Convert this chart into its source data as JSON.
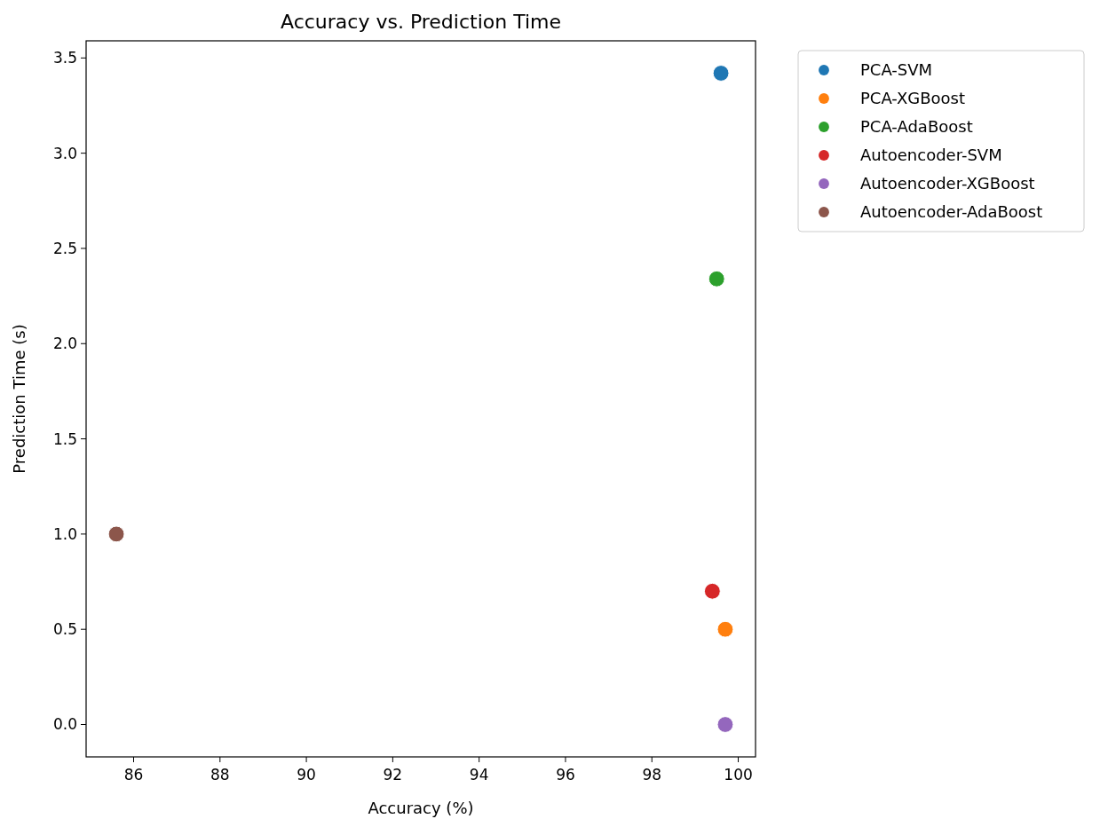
{
  "chart_data": {
    "type": "scatter",
    "title": "Accuracy vs. Prediction Time",
    "xlabel": "Accuracy (%)",
    "ylabel": "Prediction Time (s)",
    "xlim": [
      84.9,
      100.4
    ],
    "xticks": [
      86,
      88,
      90,
      92,
      94,
      96,
      98,
      100
    ],
    "ylim": [
      -0.17,
      3.59
    ],
    "yticks": [
      {
        "value": 0,
        "label": "0.0"
      },
      0.5,
      {
        "value": 1,
        "label": "1.0"
      },
      1.5,
      {
        "value": 2,
        "label": "2.0"
      },
      2.5,
      {
        "value": 3,
        "label": "3.0"
      },
      3.5
    ],
    "grid": false,
    "legend": "top right",
    "marker": "circle",
    "series": [
      {
        "name": "PCA-SVM",
        "color": "#1f77b4",
        "x": [
          99.6
        ],
        "values": [
          3.42
        ]
      },
      {
        "name": "PCA-XGBoost",
        "color": "#ff7f0e",
        "x": [
          99.7
        ],
        "values": [
          0.5
        ]
      },
      {
        "name": "PCA-AdaBoost",
        "color": "#2ca02c",
        "x": [
          99.5
        ],
        "values": [
          2.34
        ]
      },
      {
        "name": "Autoencoder-SVM",
        "color": "#d62728",
        "x": [
          99.4
        ],
        "values": [
          0.7
        ]
      },
      {
        "name": "Autoencoder-XGBoost",
        "color": "#9467bd",
        "x": [
          99.7
        ],
        "values": [
          0.0
        ]
      },
      {
        "name": "Autoencoder-AdaBoost",
        "color": "#8c564b",
        "x": [
          85.6
        ],
        "values": [
          1.0
        ]
      }
    ]
  }
}
